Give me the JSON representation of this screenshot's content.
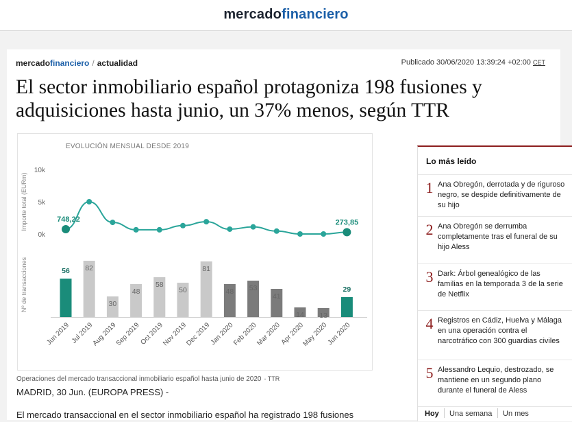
{
  "site": {
    "logo_part1": "mercado",
    "logo_part2": "financiero"
  },
  "breadcrumb": {
    "site_part1": "mercado",
    "site_part2": "financiero",
    "separator": "/",
    "section": "actualidad"
  },
  "published": {
    "label": "Publicado 30/06/2020 13:39:24 +02:00",
    "tz": "CET"
  },
  "headline": "El sector inmobiliario español protagoniza 198 fusiones y adquisiciones hasta junio, un 37% menos, según TTR",
  "caption": {
    "text": "Operaciones del mercado transaccional inmobiliario español hasta junio de 2020",
    "source": "- TTR"
  },
  "dateline": "MADRID, 30 Jun. (EUROPA PRESS) -",
  "body_first_line": "El mercado transaccional en el sector inmobiliario español ha registrado 198 fusiones",
  "sidebar": {
    "title": "Lo más leído",
    "items": [
      {
        "num": "1",
        "text": "Ana Obregón, derrotada y de riguroso negro, se despide definitivamente de su hijo"
      },
      {
        "num": "2",
        "text": "Ana Obregón se derrumba completamente tras el funeral de su hijo Aless"
      },
      {
        "num": "3",
        "text": "Dark: Árbol genealógico de las familias en la temporada 3 de la serie de Netflix"
      },
      {
        "num": "4",
        "text": "Registros en Cádiz, Huelva y Málaga en una operación contra el narcotráfico con 300 guardias civiles"
      },
      {
        "num": "5",
        "text": "Alessandro Lequio, destrozado, se mantiene en un segundo plano durante el funeral de Aless"
      }
    ],
    "tabs": [
      "Hoy",
      "Una semana",
      "Un mes"
    ]
  },
  "chart_data": {
    "type": "bar",
    "title": "EVOLUCIÓN MENSUAL DESDE 2019",
    "categories": [
      "Jun 2019",
      "Jul 2019",
      "Aug 2019",
      "Sep 2019",
      "Oct 2019",
      "Nov 2019",
      "Dec 2019",
      "Jan 2020",
      "Feb 2020",
      "Mar 2020",
      "Apr 2020",
      "May 2020",
      "Jun 2020"
    ],
    "series": [
      {
        "name": "Nº de transacciones",
        "type": "bar",
        "values": [
          56,
          82,
          30,
          48,
          58,
          50,
          81,
          48,
          53,
          41,
          14,
          13,
          29
        ],
        "colors": [
          "#1a8c7a",
          "#c9c9c9",
          "#c9c9c9",
          "#c9c9c9",
          "#c9c9c9",
          "#c9c9c9",
          "#c9c9c9",
          "#7b7b7b",
          "#7b7b7b",
          "#7b7b7b",
          "#7b7b7b",
          "#7b7b7b",
          "#1a8c7a"
        ]
      },
      {
        "name": "Importe total (EURm)",
        "type": "line",
        "values": [
          748.22,
          5000,
          1800,
          650,
          650,
          1300,
          1900,
          750,
          1100,
          450,
          0,
          0,
          273.85
        ],
        "color": "#2aa59a"
      }
    ],
    "line_labels": [
      {
        "index": 0,
        "text": "748,22"
      },
      {
        "index": 12,
        "text": "273,85"
      }
    ],
    "y_line_ticks": [
      "10k",
      "5k",
      "0k"
    ],
    "y_line_label": "Importe total (EURm)",
    "y_bar_label": "Nº de transacciones",
    "line_ylim": [
      0,
      10000
    ],
    "bar_ylim": [
      0,
      90
    ]
  }
}
